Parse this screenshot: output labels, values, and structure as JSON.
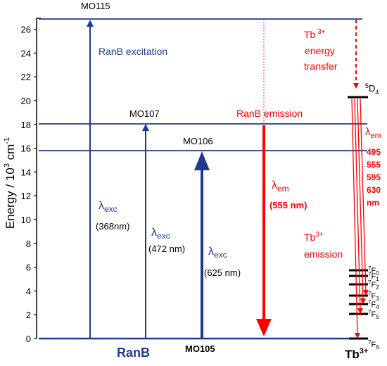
{
  "colors": {
    "axis": "#000000",
    "navy": "#1f3a93",
    "red": "#ff0000",
    "black": "#000000"
  },
  "axis": {
    "ylabel_main": "Energy  / 10",
    "ylabel_sup": "3",
    "ylabel_unit": " cm",
    "ylabel_unit_sup": "-1",
    "ymin": 0,
    "ymax": 27,
    "ticks": [
      "0",
      "2",
      "4",
      "6",
      "8",
      "10",
      "12",
      "14",
      "16",
      "18",
      "20",
      "22",
      "24",
      "26"
    ]
  },
  "levels": {
    "mo105": {
      "label": "MO105",
      "energy": 0
    },
    "mo106": {
      "label": "MO106",
      "energy": 15.9
    },
    "mo107": {
      "label": "MO107",
      "energy": 18.4
    },
    "mo115": {
      "label": "MO115",
      "energy": 27.2
    }
  },
  "ranb": {
    "label": "RanB",
    "excitation_label": "RanB excitation",
    "emission_label": "RanB emission",
    "lambda": "λ",
    "exc_sub": "exc",
    "em_sub": "em",
    "exc1_value": "(368nm)",
    "exc2_value": "(472 nm)",
    "exc3_value": "(625 nm)",
    "em_value": "(555 nm)"
  },
  "tb": {
    "label": "Tb",
    "label_sup": "3+",
    "transfer_line1_main": "Tb",
    "transfer_line1_sup": " 3+",
    "transfer_line2": "energy",
    "transfer_line3": "transfer",
    "emission_line1_main": "Tb",
    "emission_line1_sup": "3+",
    "emission_line2": "emission",
    "d4_pre": "5",
    "d4_main": "D",
    "d4_sub": "4",
    "d4_energy": 20.5,
    "em_lambda": "λ",
    "em_sub": "em",
    "wavelengths": [
      "495",
      "555",
      "595",
      "630",
      "nm"
    ],
    "f_levels": [
      {
        "sup": "7",
        "main": "F",
        "sub": "0",
        "energy": 5.8
      },
      {
        "sup": "7",
        "main": "F",
        "sub": "1",
        "energy": 5.2
      },
      {
        "sup": "7",
        "main": "F",
        "sub": "2",
        "energy": 4.5
      },
      {
        "sup": "7",
        "main": "F",
        "sub": "3",
        "energy": 3.6
      },
      {
        "sup": "7",
        "main": "F",
        "sub": "4",
        "energy": 3.0
      },
      {
        "sup": "7",
        "main": "F",
        "sub": "5",
        "energy": 2.1
      },
      {
        "sup": "7",
        "main": "F",
        "sub": "6",
        "energy": 0
      }
    ]
  }
}
